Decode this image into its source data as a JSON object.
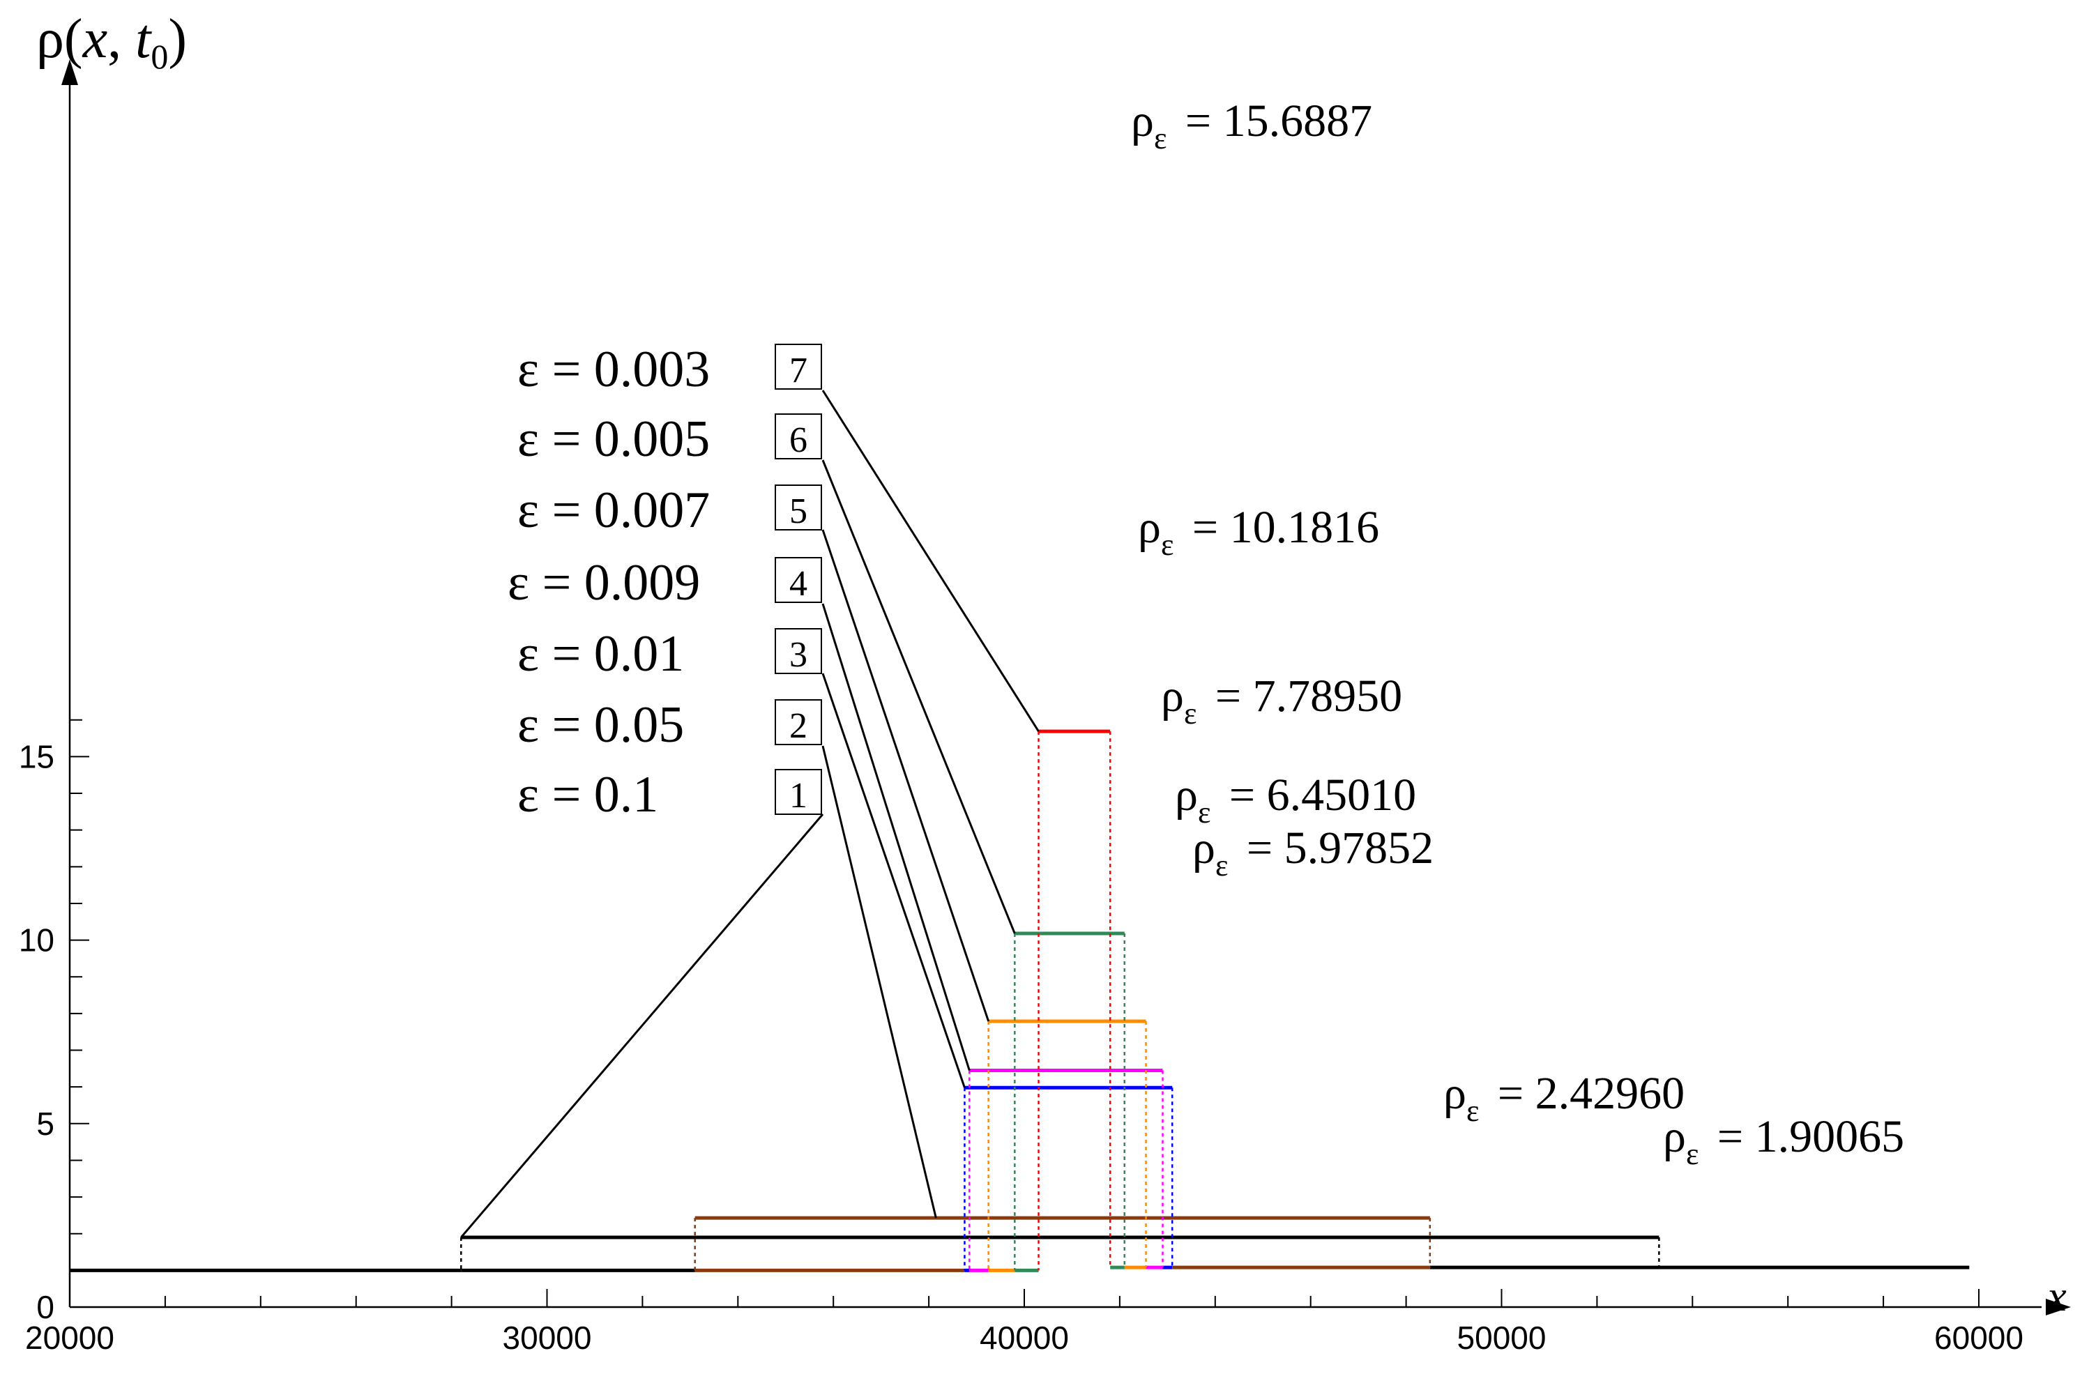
{
  "chart_data": {
    "type": "line",
    "title": "",
    "xlabel": "x",
    "ylabel": "ρ(x, t0)",
    "ylabel_parts": {
      "rho": "ρ",
      "open": "(",
      "x": "x",
      "comma": ",",
      "t": "t",
      "sub": "0",
      "close": ")"
    },
    "xlim": [
      20000,
      60000
    ],
    "ylim": [
      0,
      16.8
    ],
    "x_ticks": [
      20000,
      30000,
      40000,
      50000,
      60000
    ],
    "x_tick_labels": [
      "20000",
      "30000",
      "40000",
      "50000",
      "60000"
    ],
    "y_ticks": [
      0,
      5,
      10,
      15
    ],
    "y_tick_labels": [
      "0",
      "5",
      "10",
      "15"
    ],
    "baseline_left": 1.0,
    "baseline_right": 1.08,
    "series": [
      {
        "id": "1",
        "color": "#000000",
        "eps": "0.1",
        "x_start": 28200,
        "x_end": 53300,
        "peak": 1.90065
      },
      {
        "id": "2",
        "color": "#8B3A0E",
        "eps": "0.05",
        "x_start": 33100,
        "x_end": 48500,
        "peak": 2.4296
      },
      {
        "id": "3",
        "color": "#0000FF",
        "eps": "0.01",
        "x_start": 38750,
        "x_end": 43100,
        "peak": 5.97852
      },
      {
        "id": "4",
        "color": "#FF00FF",
        "eps": "0.009",
        "x_start": 38850,
        "x_end": 42900,
        "peak": 6.4501
      },
      {
        "id": "5",
        "color": "#FF8C00",
        "eps": "0.007",
        "x_start": 39250,
        "x_end": 42550,
        "peak": 7.7895
      },
      {
        "id": "6",
        "color": "#2E8B57",
        "eps": "0.005",
        "x_start": 39800,
        "x_end": 42100,
        "peak": 10.1816
      },
      {
        "id": "7",
        "color": "#FF0000",
        "eps": "0.003",
        "x_start": 40300,
        "x_end": 41800,
        "peak": 15.6887
      }
    ],
    "legend": {
      "placement": "upper-left",
      "entries": [
        {
          "id": "7",
          "label": "ε = 0.003"
        },
        {
          "id": "6",
          "label": "ε = 0.005"
        },
        {
          "id": "5",
          "label": "ε = 0.007"
        },
        {
          "id": "4",
          "label": "ε = 0.009"
        },
        {
          "id": "3",
          "label": "ε = 0.01"
        },
        {
          "id": "2",
          "label": "ε = 0.05"
        },
        {
          "id": "1",
          "label": "ε = 0.1"
        }
      ]
    },
    "annotations": [
      {
        "series": "7",
        "prefix": "ρ",
        "sub": "ε",
        "text": "= 15.6887"
      },
      {
        "series": "6",
        "prefix": "ρ",
        "sub": "ε",
        "text": "= 10.1816"
      },
      {
        "series": "5",
        "prefix": "ρ",
        "sub": "ε",
        "text": "= 7.78950"
      },
      {
        "series": "4",
        "prefix": "ρ",
        "sub": "ε",
        "text": "= 6.45010"
      },
      {
        "series": "3",
        "prefix": "ρ",
        "sub": "ε",
        "text": "= 5.97852"
      },
      {
        "series": "2",
        "prefix": "ρ",
        "sub": "ε",
        "text": "= 2.42960"
      },
      {
        "series": "1",
        "prefix": "ρ",
        "sub": "ε",
        "text": "= 1.90065"
      }
    ]
  }
}
